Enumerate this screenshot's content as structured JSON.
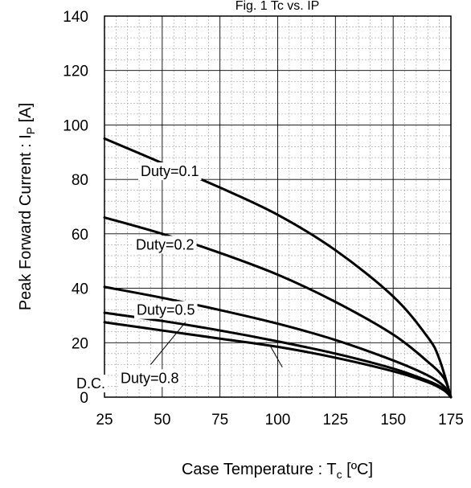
{
  "chart_data": {
    "type": "line",
    "title": "Fig. 1  Tc vs. IP",
    "xlabel": "Case Temperature : Tc [ºC]",
    "ylabel": "Peak Forward Current : IP [A]",
    "xlim": [
      25,
      175
    ],
    "ylim": [
      0,
      140
    ],
    "xticks": [
      25,
      50,
      75,
      100,
      125,
      150,
      175
    ],
    "yticks": [
      0,
      20,
      40,
      60,
      80,
      100,
      120,
      140
    ],
    "grid": true,
    "series": [
      {
        "name": "Duty=0.1",
        "x": [
          25,
          50,
          75,
          100,
          125,
          150,
          165,
          170,
          175
        ],
        "y": [
          95,
          86,
          77,
          67,
          54,
          37,
          22,
          14,
          0
        ]
      },
      {
        "name": "Duty=0.2",
        "x": [
          25,
          50,
          75,
          100,
          125,
          150,
          165,
          172,
          175
        ],
        "y": [
          66,
          60,
          53,
          45,
          35,
          23,
          13,
          7,
          0
        ]
      },
      {
        "name": "Duty=0.5",
        "x": [
          25,
          50,
          75,
          100,
          125,
          150,
          165,
          172,
          175
        ],
        "y": [
          40.5,
          36.5,
          32,
          27,
          21,
          13.5,
          8,
          4,
          0
        ]
      },
      {
        "name": "Duty=0.8",
        "x": [
          25,
          50,
          75,
          100,
          125,
          150,
          165,
          172,
          175
        ],
        "y": [
          31,
          28,
          24.5,
          20.5,
          16,
          10.5,
          6,
          3,
          0
        ]
      },
      {
        "name": "D.C.",
        "x": [
          25,
          50,
          75,
          100,
          125,
          150,
          165,
          172,
          175
        ],
        "y": [
          27.5,
          24.5,
          21.5,
          18.5,
          14.5,
          9.5,
          5.5,
          2.5,
          0
        ]
      }
    ]
  }
}
